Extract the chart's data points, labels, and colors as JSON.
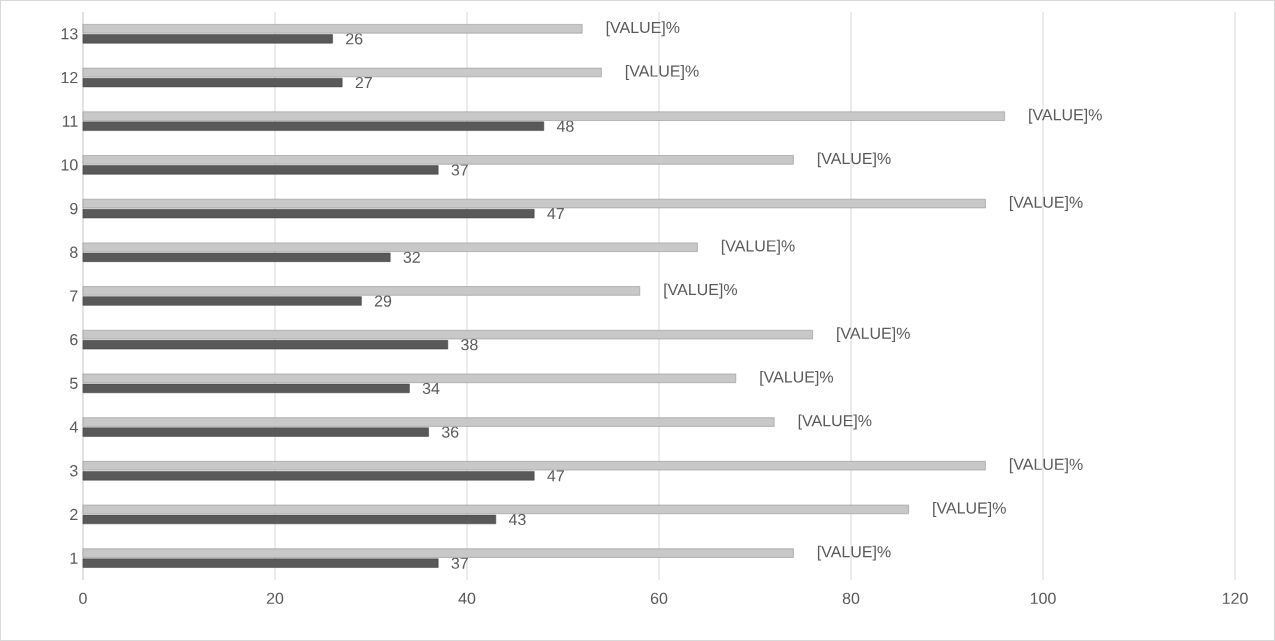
{
  "chart_data": {
    "type": "bar",
    "orientation": "horizontal",
    "categories": [
      "13",
      "12",
      "11",
      "10",
      "9",
      "8",
      "7",
      "6",
      "5",
      "4",
      "3",
      "2",
      "1"
    ],
    "series": [
      {
        "color": "#595959",
        "values": [
          26,
          27,
          48,
          37,
          47,
          32,
          29,
          38,
          34,
          36,
          47,
          43,
          37
        ],
        "value_labels": [
          "26",
          "27",
          "48",
          "37",
          "47",
          "32",
          "29",
          "38",
          "34",
          "36",
          "47",
          "43",
          "37"
        ]
      },
      {
        "color": "#c8c8c8",
        "values": [
          52,
          54,
          96,
          74,
          94,
          64,
          58,
          76,
          68,
          72,
          94,
          86,
          74
        ],
        "value_labels": [
          "[VALUE]%",
          "[VALUE]%",
          "[VALUE]%",
          "[VALUE]%",
          "[VALUE]%",
          "[VALUE]%",
          "[VALUE]%",
          "[VALUE]%",
          "[VALUE]%",
          "[VALUE]%",
          "[VALUE]%",
          "[VALUE]%",
          "[VALUE]%"
        ]
      }
    ],
    "xlim": [
      0,
      120
    ],
    "xticks": [
      0,
      20,
      40,
      60,
      80,
      100,
      120
    ],
    "grid": "x"
  }
}
